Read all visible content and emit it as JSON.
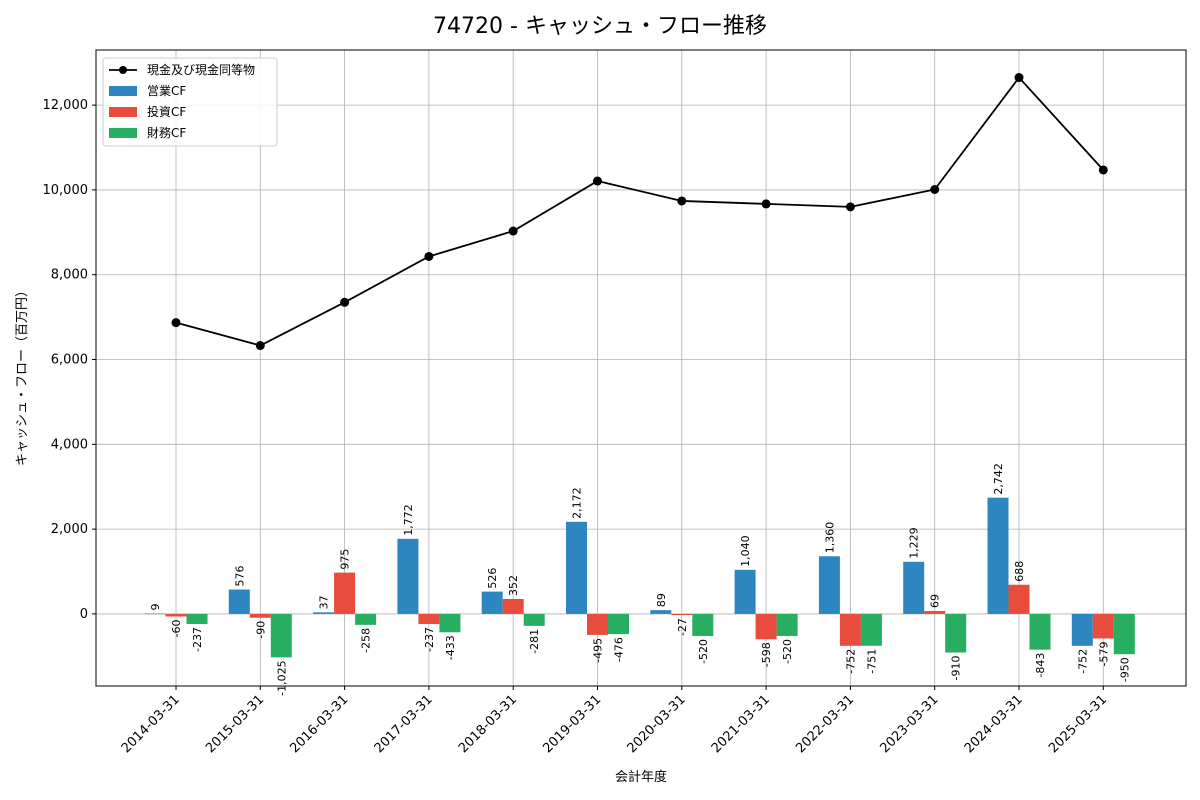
{
  "chart_data": {
    "type": "bar",
    "title": "74720 - キャッシュ・フロー推移",
    "xlabel": "会計年度",
    "ylabel": "キャッシュ・フロー（百万円）",
    "categories": [
      "2014-03-31",
      "2015-03-31",
      "2016-03-31",
      "2017-03-31",
      "2018-03-31",
      "2019-03-31",
      "2020-03-31",
      "2021-03-31",
      "2022-03-31",
      "2023-03-31",
      "2024-03-31",
      "2025-03-31"
    ],
    "ylim": [
      -1700,
      13300
    ],
    "yticks": [
      0,
      2000,
      4000,
      6000,
      8000,
      10000,
      12000
    ],
    "ytick_labels": [
      "0",
      "2,000",
      "4,000",
      "6,000",
      "8,000",
      "10,000",
      "12,000"
    ],
    "grid": true,
    "legend_position": "top-left",
    "series": [
      {
        "name": "営業CF",
        "kind": "bar",
        "color": "#2e86c1",
        "values": [
          9,
          576,
          37,
          1772,
          526,
          2172,
          89,
          1040,
          1360,
          1229,
          2742,
          -752
        ],
        "labels": [
          "9",
          "576",
          "37",
          "1,772",
          "526",
          "2,172",
          "89",
          "1,040",
          "1,360",
          "1,229",
          "2,742",
          "-752"
        ]
      },
      {
        "name": "投資CF",
        "kind": "bar",
        "color": "#e74c3c",
        "values": [
          -60,
          -90,
          975,
          -237,
          352,
          -495,
          -27,
          -598,
          -752,
          69,
          688,
          -579
        ],
        "labels": [
          "-60",
          "-90",
          "975",
          "-237",
          "352",
          "-495",
          "-27",
          "-598",
          "-752",
          "69",
          "688",
          "-579"
        ]
      },
      {
        "name": "財務CF",
        "kind": "bar",
        "color": "#27ae60",
        "values": [
          -237,
          -1025,
          -258,
          -433,
          -281,
          -476,
          -520,
          -520,
          -751,
          -910,
          -843,
          -950
        ],
        "labels": [
          "-237",
          "-1,025",
          "-258",
          "-433",
          "-281",
          "-476",
          "-520",
          "-520",
          "-751",
          "-910",
          "-843",
          "-950"
        ]
      },
      {
        "name": "現金及び現金同等物",
        "kind": "line",
        "color": "#000000",
        "values": [
          6870,
          6330,
          7350,
          8430,
          9030,
          10210,
          9740,
          9670,
          9600,
          10010,
          12650,
          10470
        ]
      }
    ]
  }
}
